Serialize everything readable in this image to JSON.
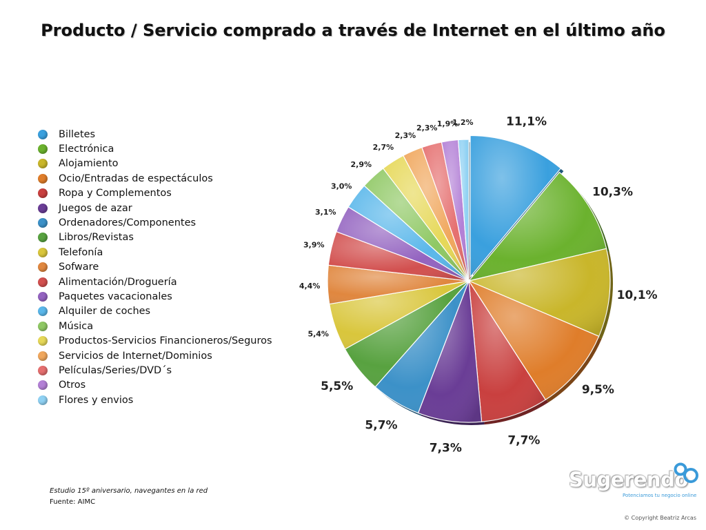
{
  "title": "Producto / Servicio comprado a través de Internet en el último año",
  "chart_data": {
    "type": "pie",
    "title": "Producto / Servicio comprado a través de Internet en el último año",
    "legend_position": "left",
    "categories": [
      "Billetes",
      "Electrónica",
      "Alojamiento",
      "Ocio/Entradas de espectáculos",
      "Ropa y Complementos",
      "Juegos de azar",
      "Ordenadores/Componentes",
      "Libros/Revistas",
      "Telefonía",
      "Sofware",
      "Alimentación/Droguería",
      "Paquetes vacacionales",
      "Alquiler de coches",
      "Música",
      "Productos-Servicios Financioneros/Seguros",
      "Servicios de Internet/Dominios",
      "Películas/Series/DVD´s",
      "Otros",
      "Flores y envios"
    ],
    "values": [
      11.1,
      10.3,
      10.1,
      9.5,
      7.7,
      7.3,
      5.7,
      5.5,
      5.4,
      4.4,
      3.9,
      3.1,
      3.0,
      2.9,
      2.7,
      2.3,
      2.3,
      1.9,
      1.2
    ],
    "value_labels": [
      "11,1%",
      "10,3%",
      "10,1%",
      "9,5%",
      "7,7%",
      "7,3%",
      "5,7%",
      "5,5%",
      "5,4%",
      "4,4%",
      "3,9%",
      "3,1%",
      "3,0%",
      "2,9%",
      "2,7%",
      "2,3%",
      "2,3%",
      "1,9%",
      "1,2%"
    ],
    "colors": [
      "#3aa0de",
      "#6bb22e",
      "#c9b62a",
      "#df7d2a",
      "#c9403f",
      "#6a3d96",
      "#3c91c8",
      "#58a240",
      "#d9c63c",
      "#e0873f",
      "#d2504f",
      "#9363c0",
      "#5ab7ea",
      "#8fc864",
      "#e6d858",
      "#f0a75d",
      "#e56f6f",
      "#b380d6",
      "#8fd1f3"
    ]
  },
  "footer": {
    "study": "Estudio 15º aniversario, navegantes en la red",
    "source": "Fuente: AIMC",
    "copyright": "© Copyright Beatriz Arcas"
  },
  "logo": {
    "name": "Sugerendo",
    "tagline": "Potenciamos tu negocio online",
    "color": "#3a9ad9"
  }
}
